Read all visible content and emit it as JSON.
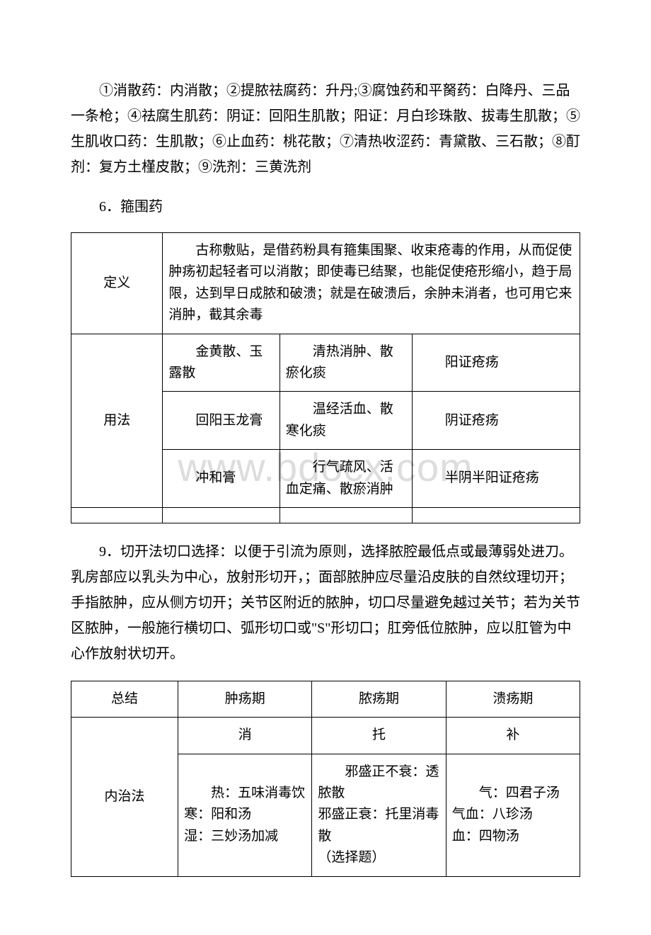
{
  "watermark": "www.bdocx.com",
  "paragraphs": {
    "p1": "①消散药：内消散；②提脓祛腐药：升丹;③腐蚀药和平胬药：白降丹、三品一条枪；④祛腐生肌药：阴证：回阳生肌散；阳证：月白珍珠散、拔毒生肌散；⑤生肌收口药：生肌散；⑥止血药：桃花散；⑦清热收涩药：青黛散、三石散；⑧酊剂：复方土槿皮散；⑨洗剂：三黄洗剂",
    "section6": "6．箍围药",
    "p9": "9．切开法切口选择：以便于引流为原则，选择脓腔最低点或最薄弱处进刀。乳房部应以乳头为中心，放射形切开，；面部脓肿应尽量沿皮肤的自然纹理切开；手指脓肿，应从侧方切开；关节区附近的脓肿，切口尽量避免越过关节；若为关节区脓肿，一般施行横切口、弧形切口或\"S\"形切口；肛旁低位脓肿，应以肛管为中心作放射状切开。"
  },
  "table1": {
    "row_def_label": "定义",
    "row_def_text": "古称敷贴，是借药粉具有箍集围聚、收束疮毒的作用，从而促使肿疡初起轻者可以消散；即使毒已结聚，也能促使疮形缩小，趋于局限，达到早日成脓和破溃；就是在破溃后，余肿未消者，也可用它来消肿，截其余毒",
    "row_use_label": "用法",
    "rows": [
      {
        "med": "金黄散、玉露散",
        "eff": "清热消肿、散瘀化痰",
        "ind": "阳证疮疡"
      },
      {
        "med": "回阳玉龙膏",
        "eff": "温经活血、散寒化痰",
        "ind": "阴证疮疡"
      },
      {
        "med": "冲和膏",
        "eff": "行气疏风、活血定痛、散瘀消肿",
        "ind": "半阴半阳证疮疡"
      }
    ]
  },
  "table2": {
    "header": [
      "总结",
      "肿疡期",
      "脓疡期",
      "溃疡期"
    ],
    "label_inner": "内治法",
    "principles": [
      "消",
      "托",
      "补"
    ],
    "col1": "热：五味消毒饮\n寒：阳和汤\n湿：三妙汤加减",
    "col2": "邪盛正不衰：透脓散\n邪盛正衰：托里消毒散\n（选择题）",
    "col3": "气：四君子汤\n气血：八珍汤\n血：四物汤"
  }
}
